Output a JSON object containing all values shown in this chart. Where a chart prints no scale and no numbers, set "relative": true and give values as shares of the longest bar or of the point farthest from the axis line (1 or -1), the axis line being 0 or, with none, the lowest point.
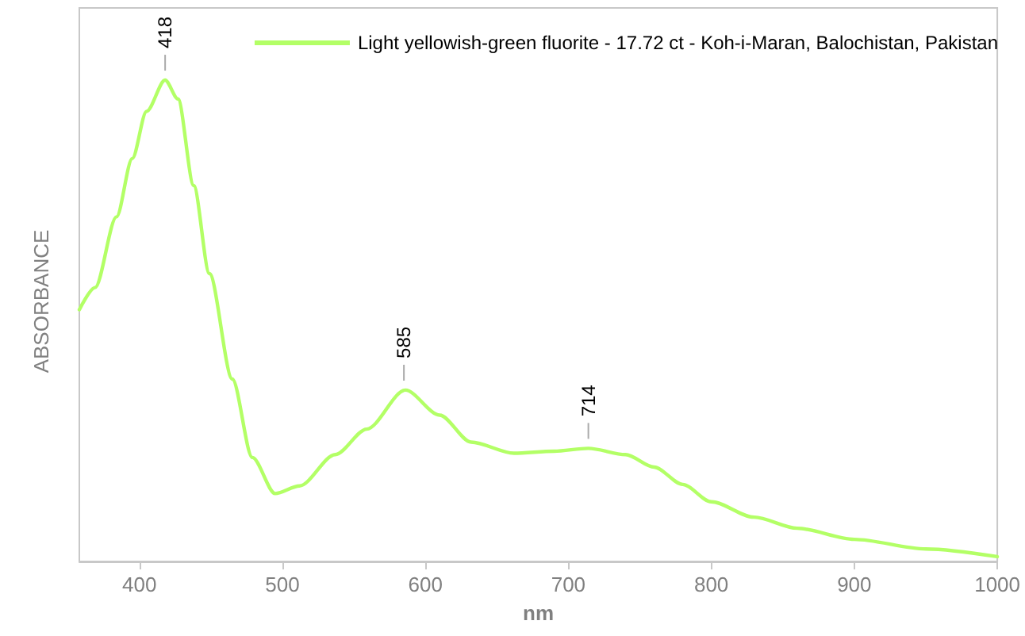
{
  "chart_data": {
    "type": "line",
    "relative": true,
    "xlabel": "nm",
    "ylabel": "ABSORBANCE",
    "xlim": [
      358,
      1000
    ],
    "xticks": [
      400,
      500,
      600,
      700,
      800,
      900,
      1000
    ],
    "x": [
      358,
      369,
      384,
      395,
      405,
      418,
      427,
      438,
      449,
      465,
      479,
      495,
      512,
      537,
      559,
      586,
      610,
      632,
      662,
      690,
      714,
      740,
      760,
      780,
      800,
      830,
      860,
      900,
      950,
      1000
    ],
    "series": [
      {
        "name": "Light yellowish-green fluorite - 17.72 ct - Koh-i-Maran, Balochistan, Pakistan",
        "color": "#b3ff66",
        "values": [
          0.523,
          0.569,
          0.716,
          0.837,
          0.935,
          1.0,
          0.961,
          0.781,
          0.598,
          0.379,
          0.216,
          0.141,
          0.157,
          0.222,
          0.275,
          0.356,
          0.304,
          0.248,
          0.225,
          0.229,
          0.235,
          0.222,
          0.196,
          0.16,
          0.124,
          0.092,
          0.069,
          0.046,
          0.026,
          0.01
        ]
      }
    ],
    "annotations": [
      {
        "text": "418",
        "x": 418,
        "y": 1.0
      },
      {
        "text": "585",
        "x": 585,
        "y": 0.356
      },
      {
        "text": "714",
        "x": 714,
        "y": 0.235
      }
    ],
    "legend": "top right",
    "grid": false,
    "marker": "none",
    "line_style": "solid"
  }
}
